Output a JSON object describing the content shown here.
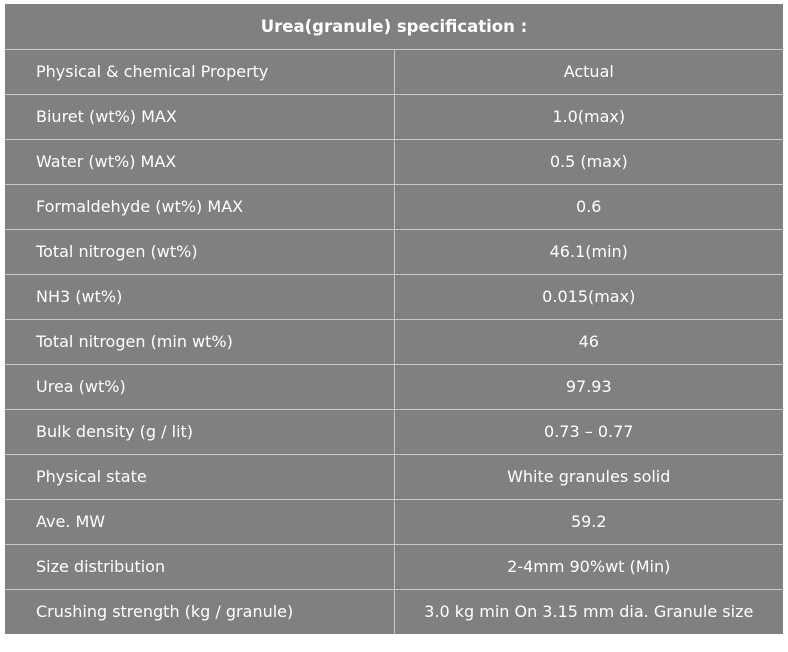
{
  "title": "Urea(granule) specification :",
  "header_row": {
    "property": "Physical & chemical Property",
    "value": "Actual"
  },
  "rows": [
    {
      "property": "Biuret (wt%) MAX",
      "value": "1.0(max)"
    },
    {
      "property": "Water (wt%) MAX",
      "value": "0.5 (max)"
    },
    {
      "property": "Formaldehyde (wt%) MAX",
      "value": "0.6"
    },
    {
      "property": "Total nitrogen (wt%)",
      "value": "46.1(min)"
    },
    {
      "property": "NH3 (wt%)",
      "value": "0.015(max)"
    },
    {
      "property": "Total nitrogen (min wt%)",
      "value": "46"
    },
    {
      "property": "Urea (wt%)",
      "value": "97.93"
    },
    {
      "property": "Bulk density (g / lit)",
      "value": "0.73 – 0.77"
    },
    {
      "property": "Physical state",
      "value": "White granules solid"
    },
    {
      "property": "Ave. MW",
      "value": "59.2"
    },
    {
      "property": "Size distribution",
      "value": "2-4mm 90%wt (Min)"
    },
    {
      "property": "Crushing strength (kg / granule)",
      "value": "3.0 kg min On 3.15 mm dia. Granule size"
    }
  ],
  "colors": {
    "background": "#808080",
    "text": "#ffffff",
    "border": "#c8c8c8"
  }
}
